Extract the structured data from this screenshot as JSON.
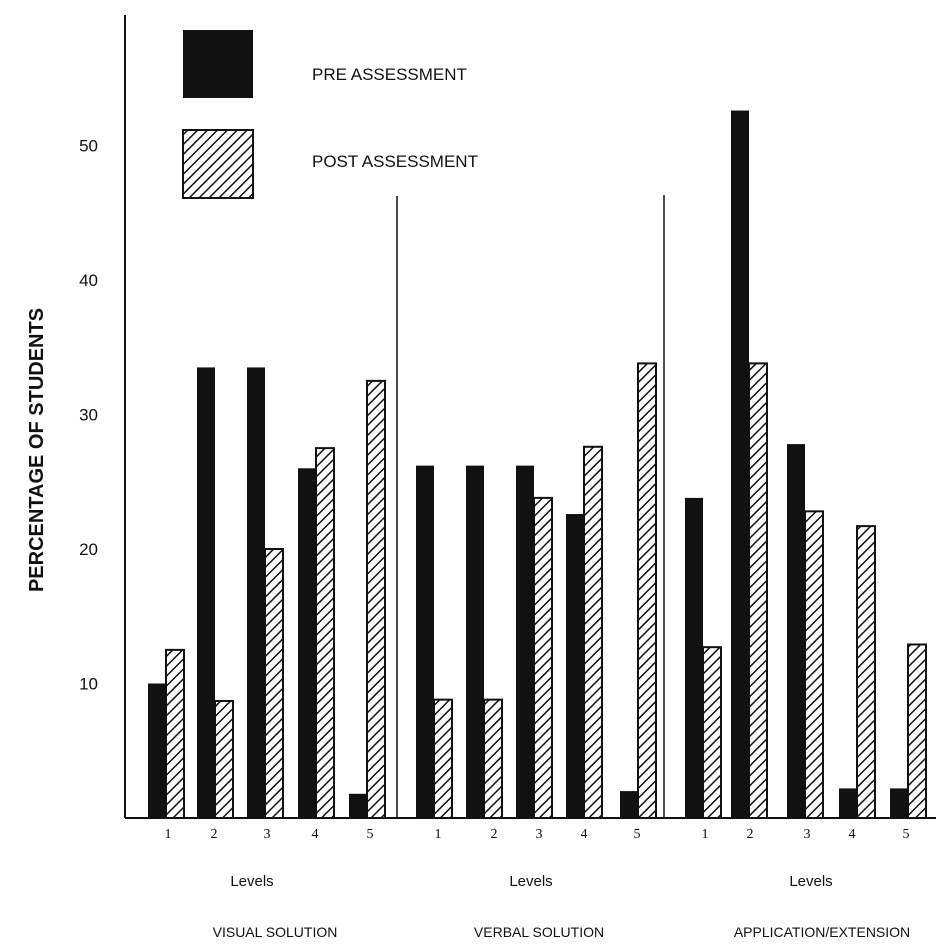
{
  "chart_data": {
    "type": "bar",
    "ylabel": "PERCENTAGE OF STUDENTS",
    "xlabel": "Levels",
    "yticks": [
      "10",
      "20",
      "30",
      "40",
      "50"
    ],
    "ylim": [
      0,
      55
    ],
    "grid": false,
    "legend_position": "top-left",
    "series": [
      {
        "name": "PRE ASSESSMENT",
        "pattern": "solid",
        "color": "#111111"
      },
      {
        "name": "POST ASSESSMENT",
        "pattern": "diagonal-hatch",
        "color": "#111111"
      }
    ],
    "groups": [
      {
        "name": "VISUAL SOLUTION",
        "x_label": "Levels",
        "categories": [
          "1",
          "2",
          "3",
          "4",
          "5"
        ],
        "pre": [
          10,
          33.5,
          33.5,
          26,
          1.8
        ],
        "post": [
          12.5,
          8.7,
          20,
          27.5,
          32.5
        ]
      },
      {
        "name": "VERBAL SOLUTION",
        "x_label": "Levels",
        "categories": [
          "1",
          "2",
          "3",
          "4",
          "5"
        ],
        "pre": [
          26.2,
          26.2,
          26.2,
          22.6,
          2
        ],
        "post": [
          8.8,
          8.8,
          23.8,
          27.6,
          33.8
        ]
      },
      {
        "name": "APPLICATION/EXTENSION",
        "x_label": "Levels",
        "categories": [
          "1",
          "2",
          "3",
          "4",
          "5"
        ],
        "pre": [
          23.8,
          52.6,
          27.8,
          2.2,
          2.2
        ],
        "post": [
          12.7,
          33.8,
          22.8,
          21.7,
          12.9
        ]
      }
    ]
  }
}
